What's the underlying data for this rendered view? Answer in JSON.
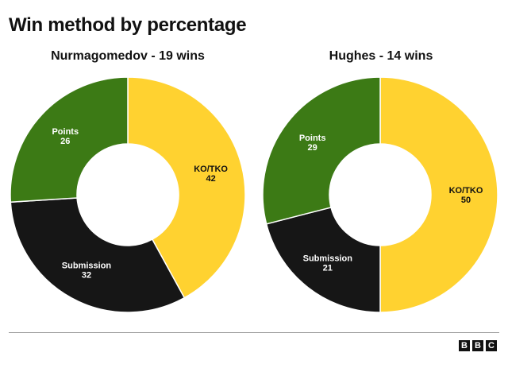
{
  "page": {
    "title": "Win method by percentage"
  },
  "chart_data": [
    {
      "type": "pie",
      "title": "Nurmagomedov - 19 wins",
      "categories": [
        "KO/TKO",
        "Submission",
        "Points"
      ],
      "values": [
        42,
        32,
        26
      ],
      "colors": [
        "#FFD230",
        "#161616",
        "#3C7A15"
      ],
      "label_colors": [
        "#111111",
        "#ffffff",
        "#ffffff"
      ]
    },
    {
      "type": "pie",
      "title": "Hughes - 14 wins",
      "categories": [
        "KO/TKO",
        "Submission",
        "Points"
      ],
      "values": [
        50,
        21,
        29
      ],
      "colors": [
        "#FFD230",
        "#161616",
        "#3C7A15"
      ],
      "label_colors": [
        "#111111",
        "#ffffff",
        "#ffffff"
      ]
    }
  ],
  "footer": {
    "logo_letters": [
      "B",
      "B",
      "C"
    ]
  }
}
